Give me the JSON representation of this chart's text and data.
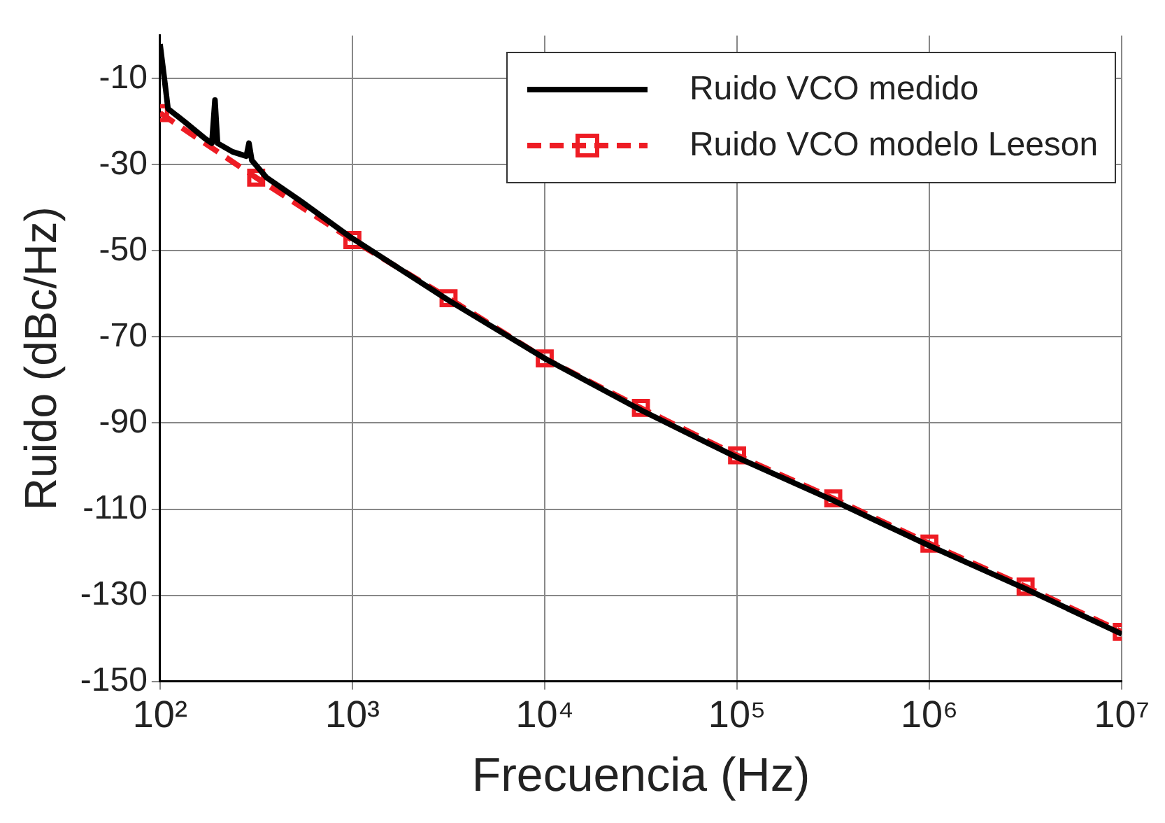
{
  "chart_data": {
    "type": "line",
    "xlabel": "Frecuencia (Hz)",
    "ylabel": "Ruido (dBc/Hz)",
    "log": "x",
    "grid": true,
    "legend": "top right",
    "xlim": [
      100,
      10000000
    ],
    "xticks": [
      {
        "value": 100,
        "label": "10²"
      },
      {
        "value": 1000,
        "label": "10³"
      },
      {
        "value": 10000,
        "label": "10⁴"
      },
      {
        "value": 100000,
        "label": "10⁵"
      },
      {
        "value": 1000000,
        "label": "10⁶"
      },
      {
        "value": 10000000,
        "label": "10⁷"
      }
    ],
    "ylim": [
      -150,
      0
    ],
    "yticks": [
      -150,
      -130,
      -110,
      -90,
      -70,
      -50,
      -30,
      -10
    ],
    "series": [
      {
        "name": "Ruido VCO medido",
        "color": "#000000",
        "marker": "none",
        "line_style": "solid",
        "x": [
          100,
          107,
          110,
          134,
          172,
          186,
          193,
          199,
          238,
          281,
          290,
          300,
          358,
          540,
          990,
          3162,
          10000,
          31623,
          100000,
          316228,
          1000000,
          3162278,
          10000000
        ],
        "values": [
          -2,
          -12.5,
          -17,
          -20,
          -24,
          -25,
          -15,
          -25,
          -27,
          -28,
          -25,
          -29,
          -33,
          -38.5,
          -47,
          -61.5,
          -75,
          -87,
          -98,
          -108,
          -118.5,
          -128.5,
          -139
        ]
      },
      {
        "name": "Ruido VCO modelo Leeson",
        "color": "#ee1c24",
        "marker": "square",
        "line_style": "dashed",
        "x": [
          100,
          316,
          1000,
          3162,
          10000,
          31623,
          100000,
          316228,
          1000000,
          3162278,
          10000000
        ],
        "values": [
          -18,
          -33,
          -47.5,
          -61,
          -75,
          -86.5,
          -97.5,
          -107.5,
          -118,
          -128,
          -138.5
        ]
      }
    ]
  }
}
